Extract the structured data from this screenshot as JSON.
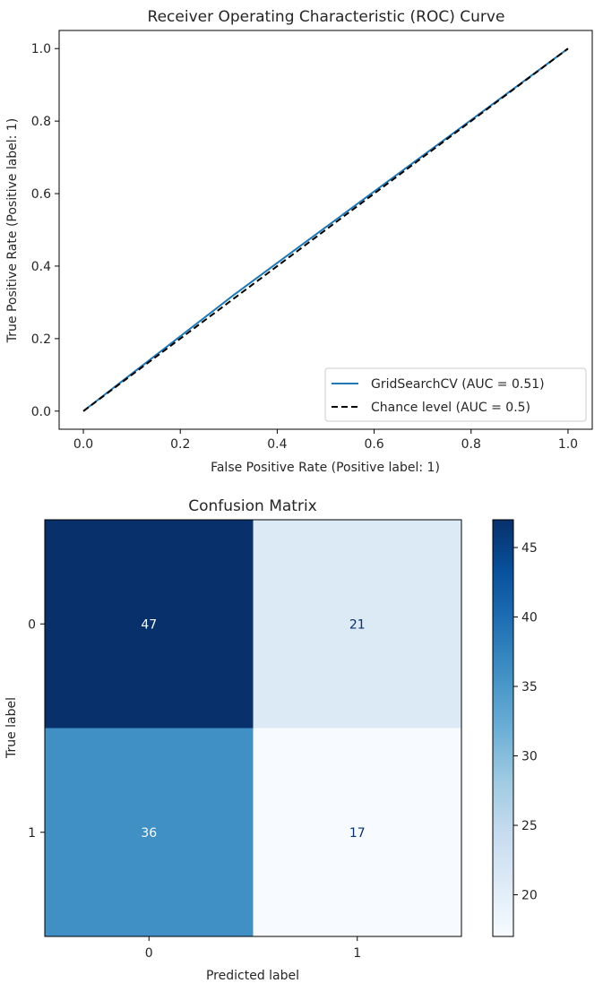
{
  "chart_data": [
    {
      "type": "line",
      "title": "Receiver Operating Characteristic (ROC) Curve",
      "xlabel": "False Positive Rate (Positive label: 1)",
      "ylabel": "True Positive Rate (Positive label: 1)",
      "xlim": [
        -0.05,
        1.05
      ],
      "ylim": [
        -0.05,
        1.05
      ],
      "x_ticks": [
        "0.0",
        "0.2",
        "0.4",
        "0.6",
        "0.8",
        "1.0"
      ],
      "y_ticks": [
        "0.0",
        "0.2",
        "0.4",
        "0.6",
        "0.8",
        "1.0"
      ],
      "grid": false,
      "legend_position": "lower-right",
      "series": [
        {
          "name": "GridSearchCV (AUC = 0.51)",
          "color": "#1f77b4",
          "style": "solid",
          "x": [
            0.0,
            0.31,
            1.0
          ],
          "y": [
            0.0,
            0.32,
            1.0
          ]
        },
        {
          "name": "Chance level (AUC = 0.5)",
          "color": "#000000",
          "style": "dashed",
          "x": [
            0.0,
            1.0
          ],
          "y": [
            0.0,
            1.0
          ]
        }
      ]
    },
    {
      "type": "heatmap",
      "title": "Confusion Matrix",
      "xlabel": "Predicted label",
      "ylabel": "True label",
      "x_categories": [
        "0",
        "1"
      ],
      "y_categories": [
        "0",
        "1"
      ],
      "values": [
        [
          47,
          21
        ],
        [
          36,
          17
        ]
      ],
      "colormap": "Blues",
      "colorbar_range": [
        17,
        47
      ],
      "colorbar_ticks": [
        "20",
        "25",
        "30",
        "35",
        "40",
        "45"
      ]
    }
  ]
}
